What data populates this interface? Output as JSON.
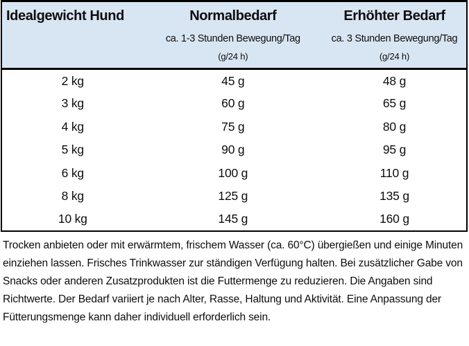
{
  "table": {
    "header": {
      "col1": "Idealgewicht Hund",
      "col2": "Normalbedarf",
      "col3": "Erhöhter Bedarf",
      "sub2": "ca. 1-3 Stunden Bewegung/Tag",
      "sub3": "ca. 3 Stunden Bewegung/Tag",
      "unit2": "(g/24 h)",
      "unit3": "(g/24 h)"
    },
    "rows": [
      {
        "weight": "2 kg",
        "normal": "45 g",
        "elevated": "48 g"
      },
      {
        "weight": "3 kg",
        "normal": "60 g",
        "elevated": "65 g"
      },
      {
        "weight": "4 kg",
        "normal": "75 g",
        "elevated": "80 g"
      },
      {
        "weight": "5 kg",
        "normal": "90 g",
        "elevated": "95 g"
      },
      {
        "weight": "6 kg",
        "normal": "100 g",
        "elevated": "110 g"
      },
      {
        "weight": "8 kg",
        "normal": "125 g",
        "elevated": "135 g"
      },
      {
        "weight": "10 kg",
        "normal": "145 g",
        "elevated": "160 g"
      }
    ]
  },
  "footer": {
    "note": "Trocken anbieten oder mit erwärmtem, frischem Wasser (ca. 60°C) übergießen und einige Minuten einziehen lassen. Frisches Trinkwasser zur ständigen Verfügung halten. Bei zusätzlicher Gabe von Snacks oder anderen Zusatzprodukten ist die Futtermenge zu reduzieren. Die Angaben sind Richtwerte. Der Bedarf variiert je nach Alter, Rasse, Haltung und Aktivität. Eine Anpassung der Fütterungsmenge kann daher individuell erforderlich sein."
  },
  "colors": {
    "header_bg": "#d8e5f2",
    "border": "#000000",
    "text": "#0d0d0d"
  }
}
